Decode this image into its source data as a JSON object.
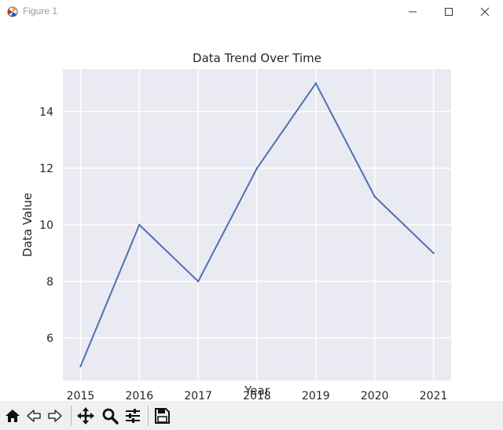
{
  "window": {
    "title": "Figure 1",
    "icons": [
      "matplotlib-icon",
      "minimize-icon",
      "maximize-icon",
      "close-icon"
    ]
  },
  "toolbar": {
    "buttons": [
      "home-icon",
      "back-icon",
      "forward-icon",
      "pan-icon",
      "zoom-icon",
      "configure-subplots-icon",
      "save-icon"
    ]
  },
  "colors": {
    "axes_background": "#eaeaf2",
    "grid": "#ffffff",
    "line": "#4c72b0",
    "toolbar_background": "#f0f0f0"
  },
  "chart_data": {
    "type": "line",
    "title": "Data Trend Over Time",
    "xlabel": "Year",
    "ylabel": "Data Value",
    "x": [
      2015,
      2016,
      2017,
      2018,
      2019,
      2020,
      2021
    ],
    "series": [
      {
        "values": [
          5,
          10,
          8,
          12,
          15,
          11,
          9
        ]
      }
    ],
    "xticks": [
      "2015",
      "2016",
      "2017",
      "2018",
      "2019",
      "2020",
      "2021"
    ],
    "yticks": [
      "6",
      "8",
      "10",
      "12",
      "14"
    ],
    "xlim": [
      2014.7,
      2021.3
    ],
    "ylim": [
      4.5,
      15.5
    ],
    "grid": true,
    "style": "seaborn darkgrid"
  }
}
